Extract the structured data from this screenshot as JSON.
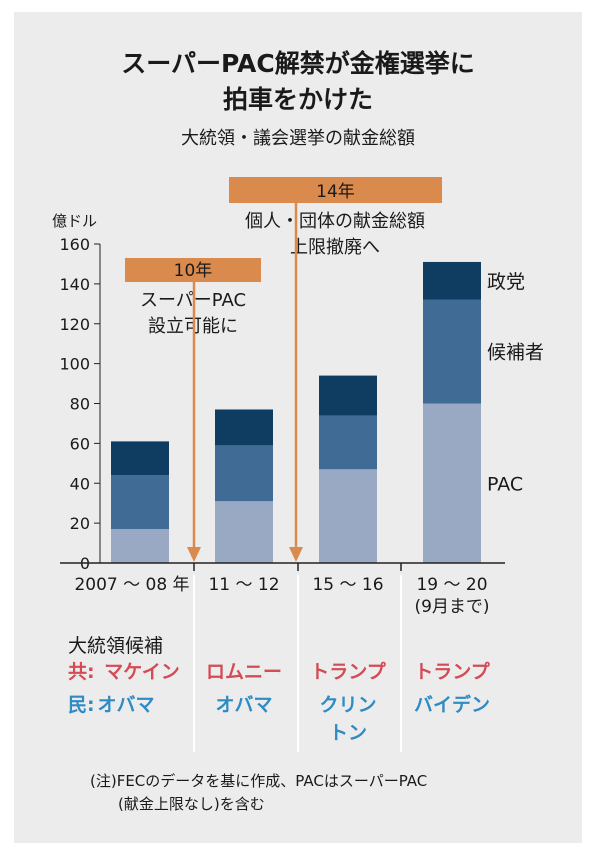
{
  "title_line1": "スーパーPAC解禁が金権選挙に",
  "title_line2": "拍車をかけた",
  "subtitle": "大統領・議会選挙の献金総額",
  "colors": {
    "background": "#ececec",
    "party": "#0f3d62",
    "candidate": "#3f6b94",
    "pac": "#9aa9c3",
    "annotation": "#d98a4c",
    "republican": "#d34b55",
    "democrat": "#2f8bc4"
  },
  "chart_data": {
    "type": "bar",
    "stacked": true,
    "categories": [
      "2007 〜 08 年",
      "11 〜 12",
      "15 〜 16",
      "19 〜 20\n(9月まで)"
    ],
    "series": [
      {
        "name": "PAC",
        "values": [
          17,
          31,
          47,
          80
        ]
      },
      {
        "name": "候補者",
        "values": [
          27,
          28,
          27,
          52
        ]
      },
      {
        "name": "政党",
        "values": [
          17,
          18,
          20,
          19
        ]
      }
    ],
    "ylabel": "億ドル",
    "ylim": [
      0,
      160
    ],
    "yticks": [
      0,
      20,
      40,
      60,
      80,
      100,
      120,
      140,
      160
    ],
    "grid": false,
    "annotations": [
      {
        "box": "10年",
        "text": [
          "スーパーPAC",
          "設立可能に"
        ],
        "between": [
          0,
          1
        ]
      },
      {
        "box": "14年",
        "text": [
          "個人・団体の献金総額",
          "上限撤廃へ"
        ],
        "between": [
          1,
          2
        ]
      }
    ]
  },
  "candidates": {
    "heading": "大統領候補",
    "rep_label": "共:",
    "dem_label": "民:",
    "republican": [
      "マケイン",
      "ロムニー",
      "トランプ",
      "トランプ"
    ],
    "democrat": [
      [
        "オバマ"
      ],
      [
        "オバマ"
      ],
      [
        "クリン",
        "トン"
      ],
      [
        "バイデン"
      ]
    ]
  },
  "note_line1": "(注)FECのデータを基に作成、PACはスーパーPAC",
  "note_line2": "(献金上限なし)を含む"
}
